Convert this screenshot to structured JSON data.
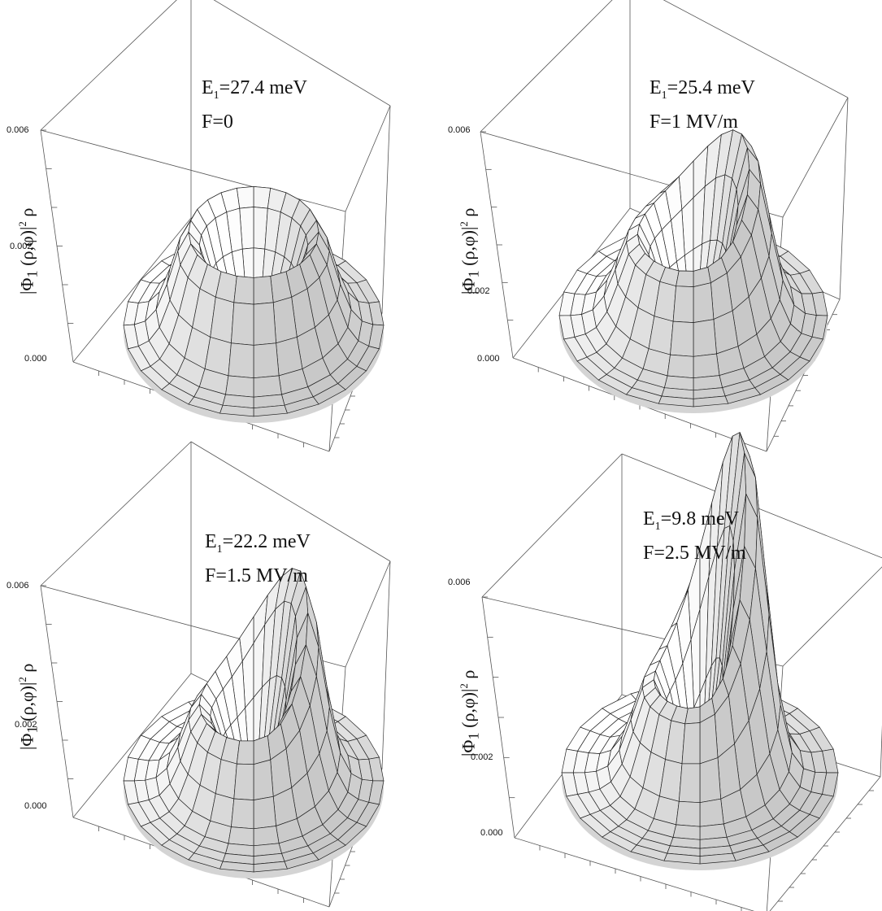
{
  "chart_data": [
    {
      "type": "surface",
      "zlabel_parts": [
        "|Φ",
        "1",
        " (ρ,φ)|",
        "2",
        " ρ"
      ],
      "zticks": [
        "0.000",
        "0.002",
        "0.006"
      ],
      "zlim": [
        0,
        0.006
      ],
      "annotation": {
        "energy_prefix": "E",
        "energy_sub": "1",
        "energy_value": "=27.4 meV",
        "field": "F=0"
      },
      "field_MV_per_m": 0,
      "energy_meV": 27.4,
      "surface_color": "#ffffff",
      "shading": "grayscale"
    },
    {
      "type": "surface",
      "zlabel_parts": [
        "|Φ",
        "1",
        " (ρ,φ)|",
        "2",
        " ρ"
      ],
      "zticks": [
        "0.000",
        "0.002",
        "0.006"
      ],
      "zlim": [
        0,
        0.006
      ],
      "annotation": {
        "energy_prefix": "E",
        "energy_sub": "1",
        "energy_value": "=25.4 meV",
        "field": "F=1 MV/m"
      },
      "field_MV_per_m": 1,
      "energy_meV": 25.4,
      "surface_color": "#ffffff",
      "shading": "grayscale"
    },
    {
      "type": "surface",
      "zlabel_parts": [
        "|Φ",
        "1",
        " (ρ,φ)|",
        "2",
        " ρ"
      ],
      "zticks": [
        "0.000",
        "0.002",
        "0.006"
      ],
      "zlim": [
        0,
        0.006
      ],
      "annotation": {
        "energy_prefix": "E",
        "energy_sub": "1",
        "energy_value": "=22.2 meV",
        "field": "F=1.5 MV/m"
      },
      "field_MV_per_m": 1.5,
      "energy_meV": 22.2,
      "surface_color": "#ffffff",
      "shading": "grayscale"
    },
    {
      "type": "surface",
      "zlabel_parts": [
        "|Φ",
        "1",
        " (ρ,φ)|",
        "2",
        " ρ"
      ],
      "zticks": [
        "0.000",
        "0.002",
        "0.006"
      ],
      "zlim": [
        0,
        0.006
      ],
      "annotation": {
        "energy_prefix": "E",
        "energy_sub": "1",
        "energy_value": "=9.8 meV",
        "field": "F=2.5 MV/m"
      },
      "field_MV_per_m": 2.5,
      "energy_meV": 9.8,
      "surface_color": "#ffffff",
      "shading": "grayscale"
    }
  ]
}
